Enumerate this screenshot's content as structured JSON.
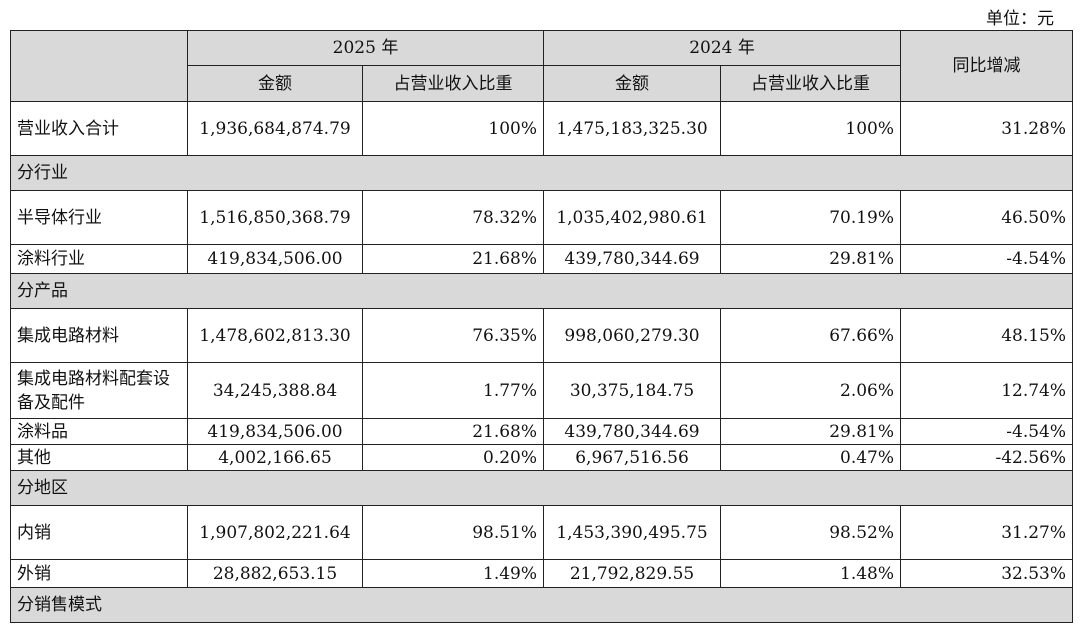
{
  "unit": "单位：元",
  "table": {
    "header_top": [
      "2025 年",
      "2024 年",
      "同比增减"
    ],
    "header_sub": [
      "金额",
      "占营业收入比重",
      "金额",
      "占营业收入比重"
    ],
    "rows": [
      [
        "营业收入合计",
        "1,936,684,874.79",
        "100%",
        "1,475,183,325.30",
        "100%",
        "31.28%"
      ],
      [
        "分行业"
      ],
      [
        "半导体行业",
        "1,516,850,368.79",
        "78.32%",
        "1,035,402,980.61",
        "70.19%",
        "46.50%"
      ],
      [
        "涂料行业",
        "419,834,506.00",
        "21.68%",
        "439,780,344.69",
        "29.81%",
        "-4.54%"
      ],
      [
        "分产品"
      ],
      [
        "集成电路材料",
        "1,478,602,813.30",
        "76.35%",
        "998,060,279.30",
        "67.66%",
        "48.15%"
      ],
      [
        "集成电路材料配套设备及配件",
        "34,245,388.84",
        "1.77%",
        "30,375,184.75",
        "2.06%",
        "12.74%"
      ],
      [
        "涂料品",
        "419,834,506.00",
        "21.68%",
        "439,780,344.69",
        "29.81%",
        "-4.54%"
      ],
      [
        "其他",
        "4,002,166.65",
        "0.20%",
        "6,967,516.56",
        "0.47%",
        "-42.56%"
      ],
      [
        "分地区"
      ],
      [
        "内销",
        "1,907,802,221.64",
        "98.51%",
        "1,453,390,495.75",
        "98.52%",
        "31.27%"
      ],
      [
        "外销",
        "28,882,653.15",
        "1.49%",
        "21,792,829.55",
        "1.48%",
        "32.53%"
      ],
      [
        "分销售模式"
      ]
    ]
  }
}
